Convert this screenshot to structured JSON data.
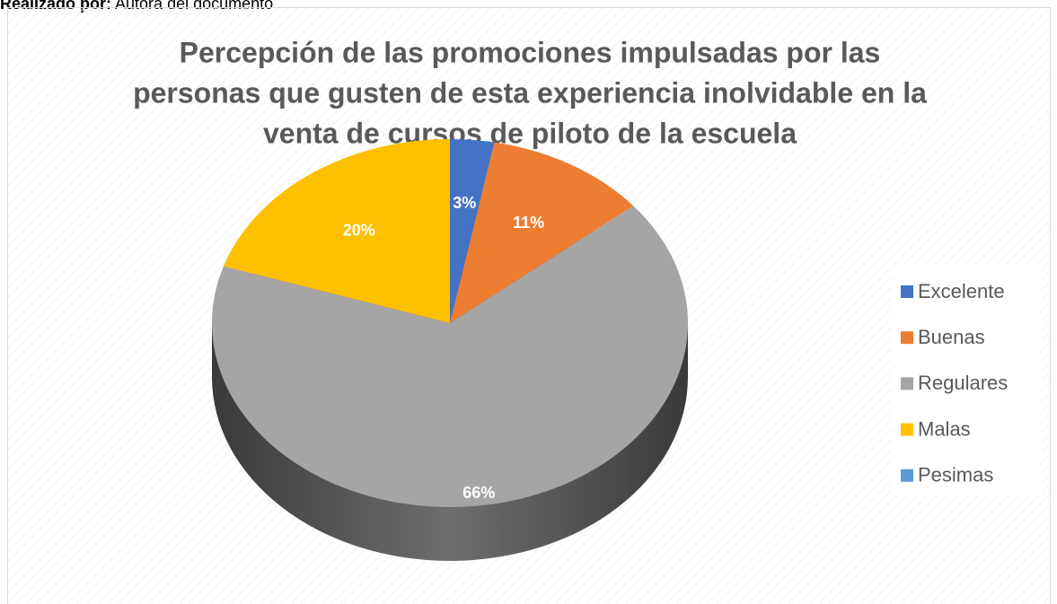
{
  "header": {
    "caption_label": "Realizado por:",
    "caption_text": "Autora del documento"
  },
  "chart_data": {
    "type": "pie",
    "title": [
      "Percepción de las promociones impulsadas por las",
      "personas que gusten de esta experiencia inolvidable en la",
      "venta de cursos de piloto de la escuela"
    ],
    "categories": [
      "Excelente",
      "Buenas",
      "Regulares",
      "Malas",
      "Pesimas"
    ],
    "values": [
      3,
      11,
      66,
      20,
      0
    ],
    "value_labels": [
      "3%",
      "11%",
      "66%",
      "20%",
      null
    ],
    "colors": [
      "#4472c4",
      "#ed7d31",
      "#a5a5a5",
      "#ffc000",
      "#5b9bd5"
    ],
    "legend": "right"
  }
}
